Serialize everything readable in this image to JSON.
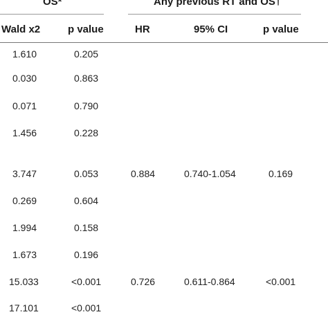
{
  "table": {
    "group_headers": {
      "os": "OS*",
      "rt_os": "Any previous RT and OS†"
    },
    "columns": {
      "wald": "Wald x2",
      "p_os": "p value",
      "hr": "HR",
      "ci": "95% CI",
      "p_rt": "p value"
    },
    "rows": [
      {
        "wald": "1.610",
        "p_os": "0.205",
        "hr": "",
        "ci": "",
        "p_rt": ""
      },
      {
        "wald": "0.030",
        "p_os": "0.863",
        "hr": "",
        "ci": "",
        "p_rt": ""
      },
      {
        "wald": "0.071",
        "p_os": "0.790",
        "hr": "",
        "ci": "",
        "p_rt": ""
      },
      {
        "wald": "1.456",
        "p_os": "0.228",
        "hr": "",
        "ci": "",
        "p_rt": ""
      },
      {
        "wald": "3.747",
        "p_os": "0.053",
        "hr": "0.884",
        "ci": "0.740-1.054",
        "p_rt": "0.169"
      },
      {
        "wald": "0.269",
        "p_os": "0.604",
        "hr": "",
        "ci": "",
        "p_rt": ""
      },
      {
        "wald": "1.994",
        "p_os": "0.158",
        "hr": "",
        "ci": "",
        "p_rt": ""
      },
      {
        "wald": "1.673",
        "p_os": "0.196",
        "hr": "",
        "ci": "",
        "p_rt": ""
      },
      {
        "wald": "15.033",
        "p_os": "<0.001",
        "hr": "0.726",
        "ci": "0.611-0.864",
        "p_rt": "<0.001"
      },
      {
        "wald": "17.101",
        "p_os": "<0.001",
        "hr": "",
        "ci": "",
        "p_rt": ""
      }
    ]
  }
}
